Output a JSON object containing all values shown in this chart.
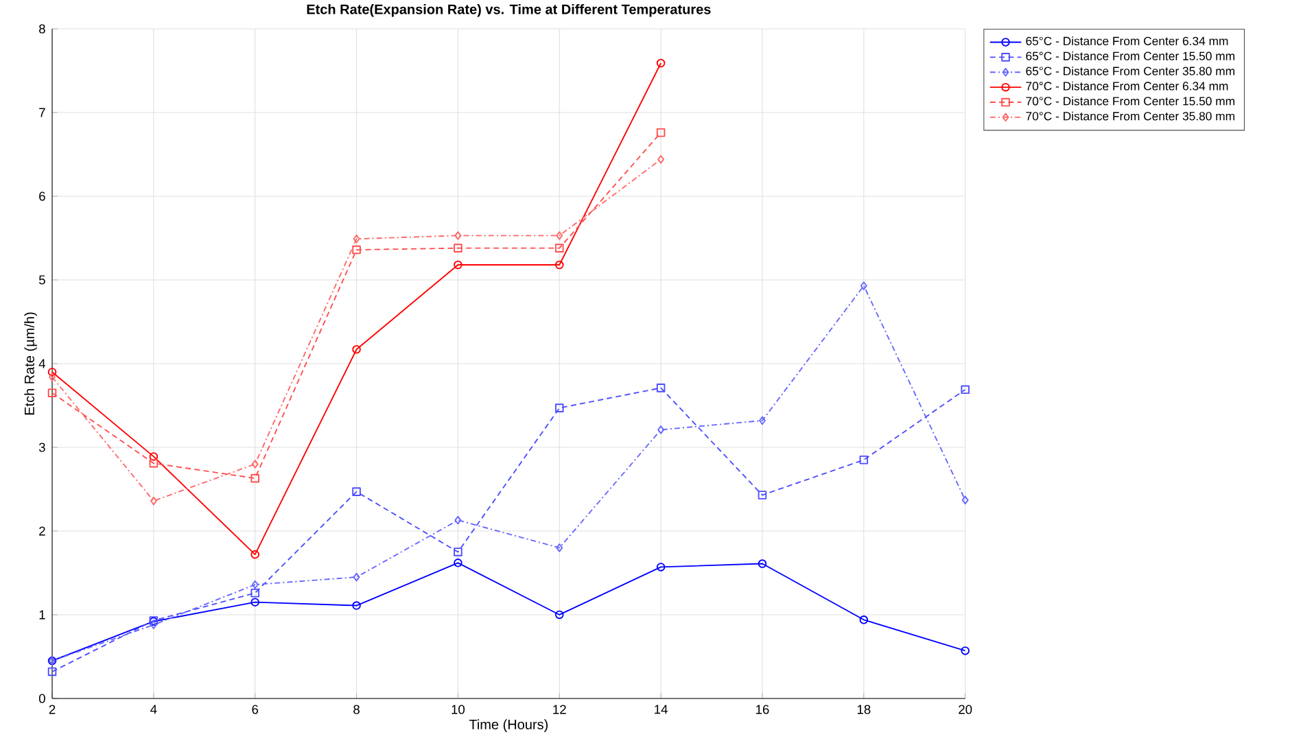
{
  "chart_data": {
    "type": "line",
    "title": "Etch Rate(Expansion Rate) vs. Time at Different Temperatures",
    "xlabel": "Time (Hours)",
    "ylabel": "Etch Rate (µm/h)",
    "x": [
      2,
      4,
      6,
      8,
      10,
      12,
      14,
      16,
      18,
      20
    ],
    "series": [
      {
        "name": "65°C - Distance From Center 6.34 mm",
        "color": "#0000ff",
        "marker": "circle",
        "line_style": "solid",
        "values": [
          0.45,
          0.92,
          1.15,
          1.11,
          1.62,
          1.0,
          1.57,
          1.61,
          0.94,
          0.57
        ]
      },
      {
        "name": "65°C - Distance From Center 15.50 mm",
        "color": "#4d4dff",
        "marker": "square",
        "line_style": "dashed",
        "values": [
          0.32,
          0.93,
          1.26,
          2.47,
          1.75,
          3.47,
          3.71,
          2.43,
          2.85,
          3.69
        ]
      },
      {
        "name": "65°C - Distance From Center 35.80 mm",
        "color": "#6666ff",
        "marker": "diamond",
        "line_style": "dashdot",
        "values": [
          0.45,
          0.88,
          1.36,
          1.45,
          2.13,
          1.8,
          3.21,
          3.32,
          4.93,
          2.37
        ]
      },
      {
        "name": "70°C - Distance From Center 6.34 mm",
        "color": "#ff0000",
        "marker": "circle",
        "line_style": "solid",
        "values": [
          3.9,
          2.89,
          1.72,
          4.17,
          5.18,
          5.18,
          7.59,
          null,
          null,
          null
        ]
      },
      {
        "name": "70°C - Distance From Center 15.50 mm",
        "color": "#ff4d4d",
        "marker": "square",
        "line_style": "dashed",
        "values": [
          3.65,
          2.81,
          2.63,
          5.36,
          5.38,
          5.38,
          6.76,
          null,
          null,
          null
        ]
      },
      {
        "name": "70°C - Distance From Center 35.80 mm",
        "color": "#ff6666",
        "marker": "diamond",
        "line_style": "dashdot",
        "values": [
          3.84,
          2.36,
          2.8,
          5.49,
          5.53,
          5.53,
          6.44,
          null,
          null,
          null
        ]
      }
    ],
    "xlim": [
      2,
      20
    ],
    "xticks": [
      2,
      4,
      6,
      8,
      10,
      12,
      14,
      16,
      18,
      20
    ],
    "ylim": [
      0,
      8
    ],
    "yticks": [
      0,
      1,
      2,
      3,
      4,
      5,
      6,
      7,
      8
    ],
    "grid": true,
    "legend": "top right"
  }
}
